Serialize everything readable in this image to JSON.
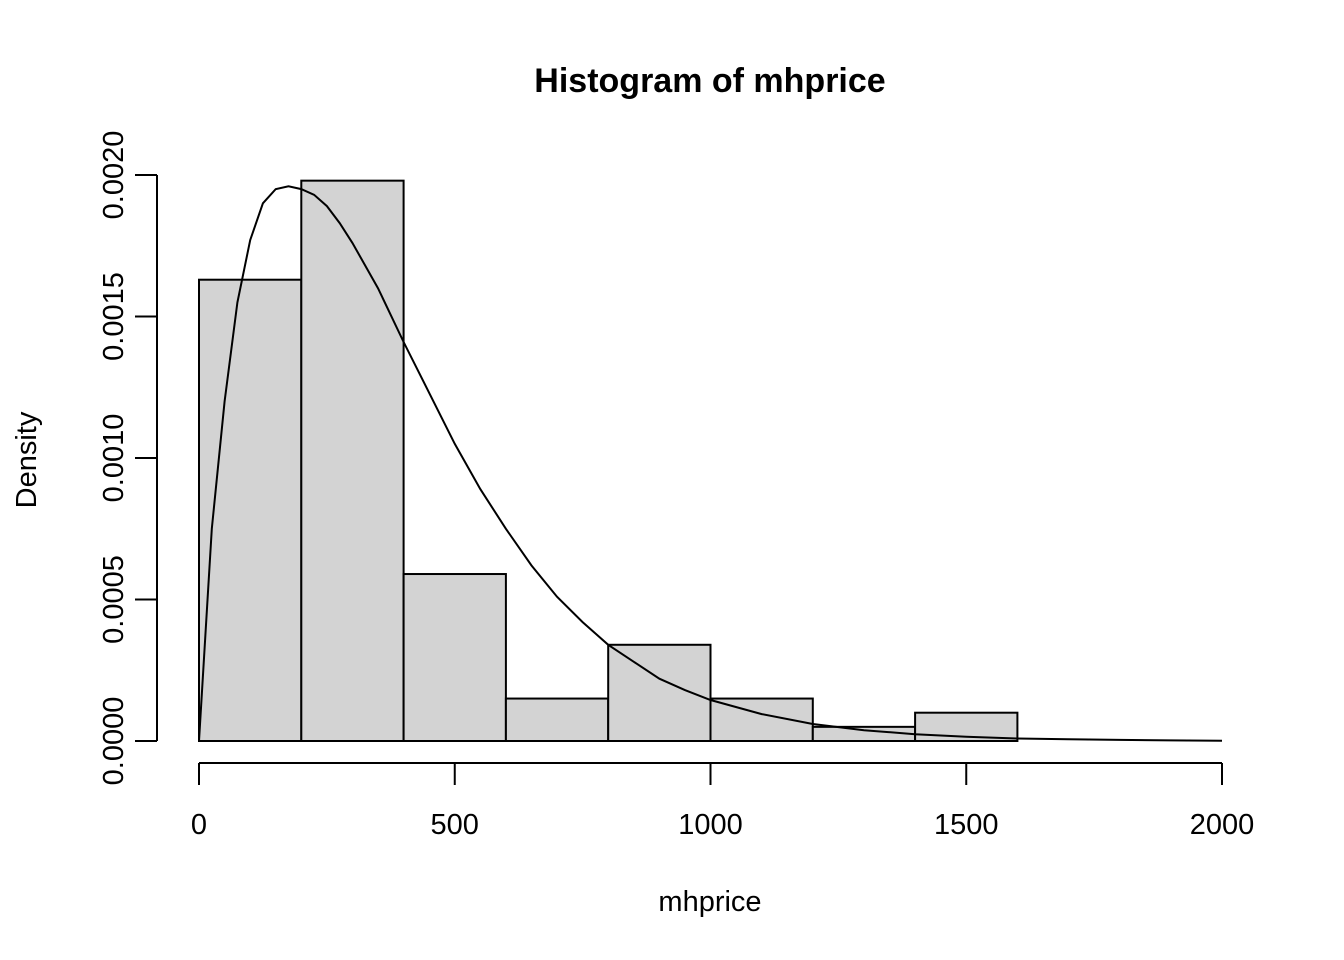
{
  "chart_data": {
    "type": "bar",
    "title": "Histogram of mhprice",
    "xlabel": "mhprice",
    "ylabel": "Density",
    "xlim": [
      0,
      2000
    ],
    "ylim": [
      0,
      0.002
    ],
    "x_ticks": [
      0,
      500,
      1000,
      1500,
      2000
    ],
    "x_tick_labels": [
      "0",
      "500",
      "1000",
      "1500",
      "2000"
    ],
    "y_ticks": [
      0,
      0.0005,
      0.001,
      0.0015,
      0.002
    ],
    "y_tick_labels": [
      "0.0000",
      "0.0005",
      "0.0010",
      "0.0015",
      "0.0020"
    ],
    "bins": [
      {
        "from": 0,
        "to": 200,
        "density": 0.00163
      },
      {
        "from": 200,
        "to": 400,
        "density": 0.00198
      },
      {
        "from": 400,
        "to": 600,
        "density": 0.00059
      },
      {
        "from": 600,
        "to": 800,
        "density": 0.00015
      },
      {
        "from": 800,
        "to": 1000,
        "density": 0.00034
      },
      {
        "from": 1000,
        "to": 1200,
        "density": 0.00015
      },
      {
        "from": 1200,
        "to": 1400,
        "density": 5e-05
      },
      {
        "from": 1400,
        "to": 1600,
        "density": 0.0001
      }
    ],
    "density_curve": {
      "x": [
        0,
        25,
        50,
        75,
        100,
        125,
        150,
        175,
        200,
        225,
        250,
        275,
        300,
        350,
        400,
        450,
        500,
        550,
        600,
        650,
        700,
        750,
        800,
        850,
        900,
        950,
        1000,
        1100,
        1200,
        1300,
        1400,
        1500,
        1600,
        1700,
        1800,
        1900,
        2000
      ],
      "y": [
        0,
        0.00075,
        0.0012,
        0.00155,
        0.00177,
        0.0019,
        0.00195,
        0.00196,
        0.00195,
        0.00193,
        0.00189,
        0.00183,
        0.00176,
        0.0016,
        0.00141,
        0.00123,
        0.00105,
        0.00089,
        0.00075,
        0.00062,
        0.00051,
        0.00042,
        0.00034,
        0.00028,
        0.00022,
        0.00018,
        0.000145,
        9.5e-05,
        6e-05,
        3.8e-05,
        2.4e-05,
        1.5e-05,
        9e-06,
        6e-06,
        4e-06,
        2e-06,
        1e-06
      ]
    },
    "grid": false,
    "legend": "none"
  }
}
